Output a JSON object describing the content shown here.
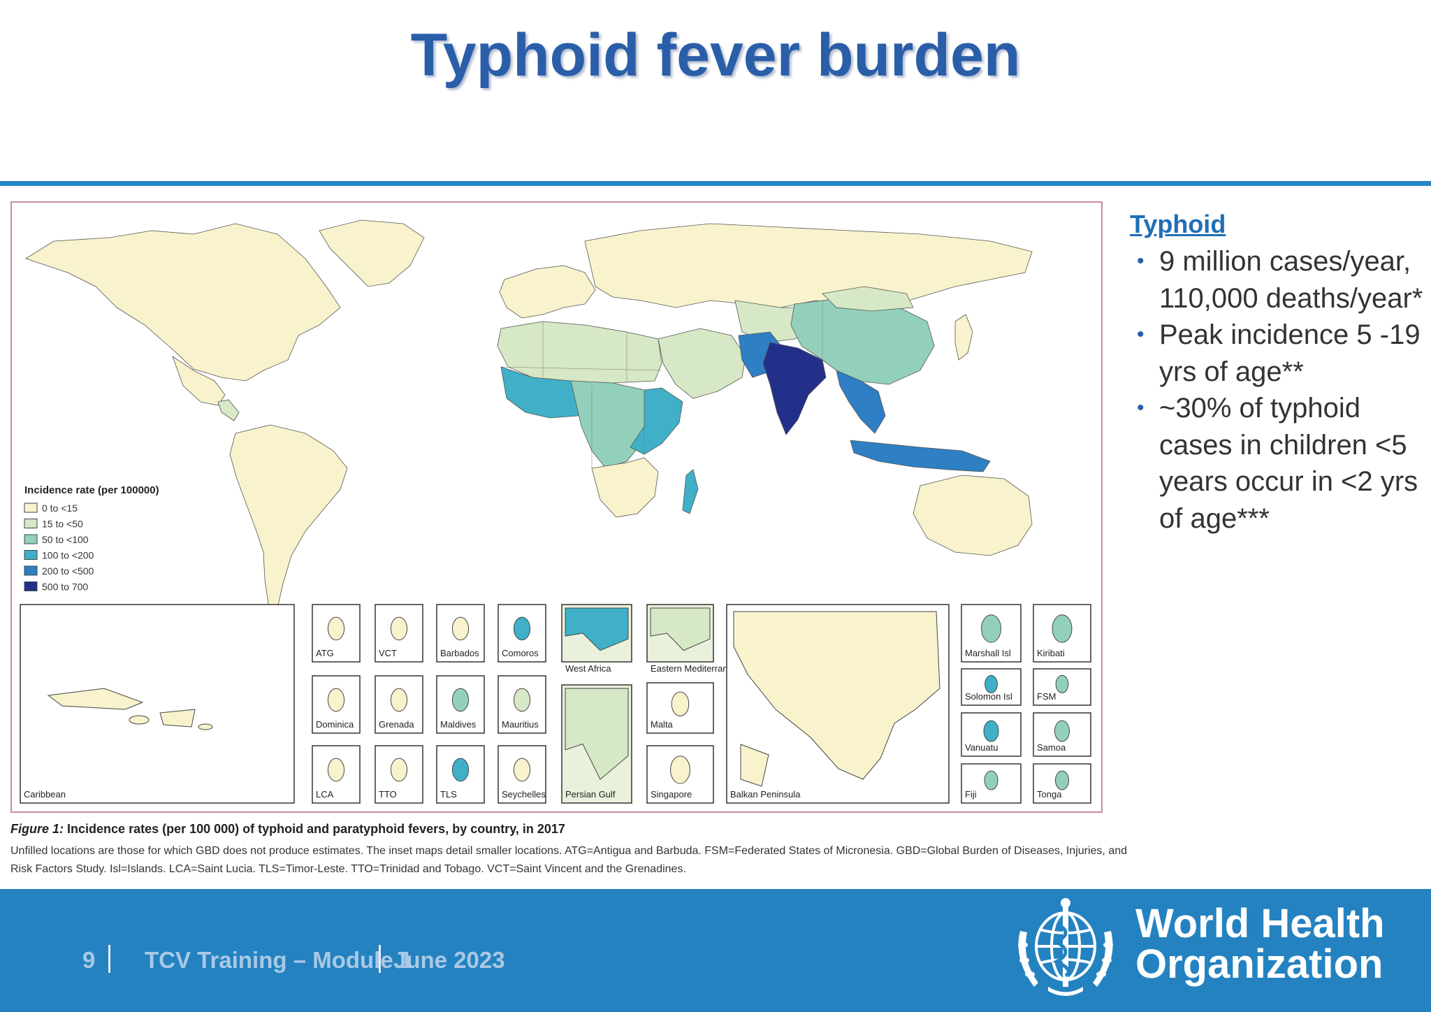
{
  "slide": {
    "title": "Typhoid fever burden"
  },
  "colors": {
    "title": "#2a5ea8",
    "rule": "#2586c6",
    "footer": "#2582c0",
    "map_frame": "#c98aa0",
    "no_data": "#f8f3cc",
    "ocean": "#ffffff",
    "levels": [
      "#f8f3cc",
      "#d6e8c5",
      "#93d0bc",
      "#3fb0c8",
      "#2e7fc3",
      "#23308a"
    ]
  },
  "map": {
    "legend": {
      "title": "Incidence rate (per 100000)",
      "items": [
        {
          "label": "0 to <15",
          "level": 0
        },
        {
          "label": "15 to <50",
          "level": 1
        },
        {
          "label": "50 to <100",
          "level": 2
        },
        {
          "label": "100 to <200",
          "level": 3
        },
        {
          "label": "200 to <500",
          "level": 4
        },
        {
          "label": "500 to 700",
          "level": 5
        }
      ]
    },
    "regions": [
      {
        "name": "North America",
        "level": 0
      },
      {
        "name": "Greenland",
        "level": 0
      },
      {
        "name": "Mexico",
        "level": 0
      },
      {
        "name": "Central America",
        "level": 1
      },
      {
        "name": "South America",
        "level": 0
      },
      {
        "name": "Europe",
        "level": 0
      },
      {
        "name": "Russia",
        "level": 0
      },
      {
        "name": "North Africa",
        "level": 1
      },
      {
        "name": "Arabia and Middle East",
        "level": 1
      },
      {
        "name": "West Africa",
        "level": 3
      },
      {
        "name": "Central Africa",
        "level": 2
      },
      {
        "name": "East Africa",
        "level": 3
      },
      {
        "name": "Southern Africa",
        "level": 0
      },
      {
        "name": "Madagascar",
        "level": 3
      },
      {
        "name": "Central Asia",
        "level": 1
      },
      {
        "name": "Pakistan",
        "level": 4
      },
      {
        "name": "India",
        "level": 5
      },
      {
        "name": "China",
        "level": 2
      },
      {
        "name": "Mongolia",
        "level": 1
      },
      {
        "name": "Southeast Asia",
        "level": 4
      },
      {
        "name": "Indonesia",
        "level": 4
      },
      {
        "name": "Japan",
        "level": 0
      },
      {
        "name": "Australia",
        "level": 0
      }
    ],
    "insets": [
      {
        "label": "Caribbean",
        "level": 0
      },
      {
        "label": "ATG",
        "level": 0
      },
      {
        "label": "VCT",
        "level": 0
      },
      {
        "label": "Barbados",
        "level": 0
      },
      {
        "label": "Comoros",
        "level": 3
      },
      {
        "label": "West Africa",
        "level": 3
      },
      {
        "label": "Eastern Mediterranean",
        "level": 1
      },
      {
        "label": "Dominica",
        "level": 0
      },
      {
        "label": "Grenada",
        "level": 0
      },
      {
        "label": "Maldives",
        "level": 2
      },
      {
        "label": "Mauritius",
        "level": 1
      },
      {
        "label": "Malta",
        "level": 0
      },
      {
        "label": "LCA",
        "level": 0
      },
      {
        "label": "TTO",
        "level": 0
      },
      {
        "label": "TLS",
        "level": 3
      },
      {
        "label": "Seychelles",
        "level": 0
      },
      {
        "label": "Persian Gulf",
        "level": 1
      },
      {
        "label": "Singapore",
        "level": 0
      },
      {
        "label": "Balkan Peninsula",
        "level": 0
      },
      {
        "label": "Marshall Isl",
        "level": 2
      },
      {
        "label": "Kiribati",
        "level": 2
      },
      {
        "label": "Solomon Isl",
        "level": 3
      },
      {
        "label": "FSM",
        "level": 2
      },
      {
        "label": "Vanuatu",
        "level": 3
      },
      {
        "label": "Samoa",
        "level": 2
      },
      {
        "label": "Fiji",
        "level": 2
      },
      {
        "label": "Tonga",
        "level": 2
      }
    ],
    "caption_figure": "Figure 1:",
    "caption_title": "Incidence rates (per 100 000) of typhoid and paratyphoid fevers, by country, in 2017",
    "caption_body": "Unfilled locations are those for which GBD does not produce estimates. The inset maps detail smaller locations. ATG=Antigua and Barbuda. FSM=Federated States of Micronesia. GBD=Global Burden of Diseases, Injuries, and Risk Factors Study. Isl=Islands. LCA=Saint Lucia. TLS=Timor-Leste. TTO=Trinidad and Tobago. VCT=Saint Vincent and the Grenadines."
  },
  "side": {
    "heading": "Typhoid",
    "bullets": [
      "9 million cases/year, 110,000 deaths/year*",
      "Peak incidence 5 -19 yrs of age**",
      "~30% of typhoid cases in children <5 years occur in <2 yrs of age***"
    ]
  },
  "footer": {
    "page": "9",
    "course": "TCV Training – Module 1",
    "date": "June 2023",
    "org_line1": "World Health",
    "org_line2": "Organization",
    "logo_icon": "who-emblem-icon"
  }
}
